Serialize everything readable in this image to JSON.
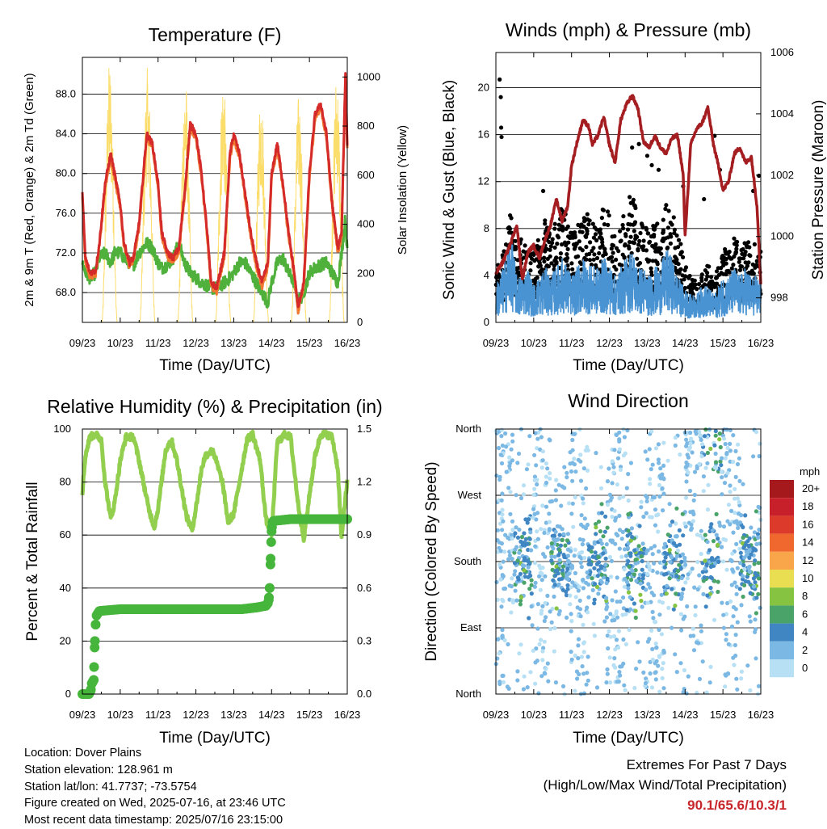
{
  "x_ticks": [
    "09/23",
    "10/23",
    "11/23",
    "12/23",
    "13/23",
    "14/23",
    "15/23",
    "16/23"
  ],
  "x_label": "Time (Day/UTC)",
  "colors": {
    "temp_red": "#d42a2a",
    "temp_orange": "#f07830",
    "dewpoint_green": "#4fb03c",
    "solar_yellow": "#fbdd6c",
    "gust_black": "#000000",
    "wind_blue": "#4a93d2",
    "pressure_maroon": "#a41d20",
    "rh_lightgreen": "#93cf4e",
    "precip_green": "#46b53b",
    "extremes_red": "#c8262b"
  },
  "info": {
    "location": "Location: Dover Plains",
    "elevation": "Station elevation: 128.961 m",
    "latlon": "Station lat/lon: 41.7737; -73.5754",
    "created": "Figure created on Wed, 2025-07-16, at 23:46 UTC",
    "recent": "Most recent data timestamp: 2025/07/16 23:15:00"
  },
  "extremes": {
    "title": "Extremes For Past 7 Days",
    "subtitle": "(High/Low/Max Wind/Total Precipitation)",
    "value": "90.1/65.6/10.3/1"
  },
  "chart_data": [
    {
      "type": "line",
      "title": "Temperature (F)",
      "ylabel": "2m & 9m T (Red, Orange) & 2m Td (Green)",
      "y2label": "Solar Insolation (Yellow)",
      "ylim": [
        65,
        91.7
      ],
      "y2lim": [
        0,
        1080
      ],
      "y_ticks": [
        "68.0",
        "72.0",
        "76.0",
        "80.0",
        "84.0",
        "88.0"
      ],
      "y2_ticks": [
        "0",
        "200",
        "400",
        "600",
        "800",
        "1000"
      ],
      "x_days": [
        0,
        0.08,
        0.2,
        0.35,
        0.45,
        0.6,
        0.75,
        0.85,
        1.0,
        1.1,
        1.25,
        1.35,
        1.5,
        1.7,
        1.85,
        2.0,
        2.1,
        2.25,
        2.4,
        2.55,
        2.7,
        2.85,
        3.0,
        3.15,
        3.3,
        3.4,
        3.55,
        3.75,
        3.9,
        4.0,
        4.15,
        4.3,
        4.45,
        4.6,
        4.75,
        4.9,
        5.0,
        5.15,
        5.3,
        5.45,
        5.6,
        5.7,
        5.85,
        6.0,
        6.15,
        6.3,
        6.45,
        6.6,
        6.75,
        6.85,
        6.95,
        7.0
      ],
      "series": [
        {
          "name": "2m T",
          "values": [
            78,
            71.5,
            70,
            70.2,
            73,
            79,
            82,
            80,
            77,
            73,
            71,
            71.5,
            75,
            84,
            83,
            79,
            74,
            72,
            71.5,
            72.5,
            78,
            85,
            84,
            80,
            74,
            69,
            68.5,
            72,
            82,
            84,
            82,
            78,
            74,
            71,
            69,
            71,
            80,
            83,
            79,
            74,
            70,
            66.5,
            69,
            80,
            86,
            87,
            84,
            77,
            72.5,
            74,
            90,
            83
          ]
        },
        {
          "name": "Td",
          "values": [
            71,
            70,
            69.5,
            70,
            71.5,
            72,
            71,
            72,
            72,
            71.5,
            71,
            70.8,
            72,
            73,
            72.5,
            71,
            70.5,
            70.8,
            71.5,
            73,
            71,
            70,
            69.5,
            69,
            68.7,
            68.5,
            68.4,
            69,
            69.5,
            70,
            71,
            71,
            70,
            69,
            68,
            67,
            69,
            71,
            71.5,
            70,
            69,
            67,
            68,
            70,
            70.5,
            70.8,
            71,
            70,
            69,
            72,
            75.5,
            72
          ]
        },
        {
          "name": "Solar Insolation",
          "daily_peak": [
            1070,
            1040,
            1000,
            1010,
            960,
            930,
            1020,
            1060
          ]
        }
      ]
    },
    {
      "type": "line",
      "title": "Winds (mph) & Pressure (mb)",
      "ylabel": "Sonic Wind & Gust (Blue, Black)",
      "y2label": "Station Pressure (Maroon)",
      "ylim": [
        0,
        23
      ],
      "y2lim": [
        997.2,
        1006
      ],
      "y_ticks": [
        "0",
        "4",
        "8",
        "12",
        "16",
        "20"
      ],
      "y2_ticks": [
        "998",
        "1000",
        "1002",
        "1004",
        "1006"
      ],
      "x_days": [
        0,
        0.2,
        0.4,
        0.55,
        0.7,
        0.85,
        1.0,
        1.15,
        1.3,
        1.45,
        1.6,
        1.75,
        1.9,
        2.0,
        2.15,
        2.3,
        2.45,
        2.55,
        2.7,
        2.85,
        3.0,
        3.15,
        3.3,
        3.45,
        3.6,
        3.75,
        3.9,
        4.05,
        4.2,
        4.35,
        4.5,
        4.65,
        4.8,
        4.95,
        5.0,
        5.15,
        5.3,
        5.45,
        5.6,
        5.75,
        5.9,
        6.0,
        6.15,
        6.3,
        6.45,
        6.6,
        6.75,
        6.9,
        7.0
      ],
      "series": [
        {
          "name": "Pressure",
          "values": [
            998.8,
            999.2,
            999.8,
            1000.4,
            998.6,
            999.5,
            999.7,
            999.3,
            999.9,
            1000.4,
            1001.2,
            1000.5,
            1001,
            1002.3,
            1003.1,
            1003.8,
            1003.6,
            1003,
            1003.3,
            1003.9,
            1003,
            1002.4,
            1003.8,
            1004.3,
            1004.6,
            1004.2,
            1003.1,
            1002.9,
            1003.3,
            1002.9,
            1002.7,
            1003.2,
            1003.3,
            1002,
            1000,
            1003,
            1003.5,
            1003.7,
            1004.2,
            1003,
            1002.2,
            1001.5,
            1001.8,
            1002.7,
            1002.9,
            1002.4,
            1002.6,
            1001,
            998.5
          ]
        },
        {
          "name": "Sonic Wind",
          "values": [
            2,
            3,
            5,
            2.5,
            2.5,
            3,
            2,
            2.5,
            3,
            2.5,
            3,
            3.5,
            3,
            2.5,
            3,
            3.5,
            3.2,
            3,
            3,
            3.5,
            3.2,
            2.5,
            3,
            3.5,
            4,
            3,
            3,
            2.5,
            3,
            3,
            4,
            3.5,
            2.5,
            2,
            1.8,
            1.5,
            1.5,
            2,
            2,
            1.5,
            2,
            2.5,
            2.5,
            3,
            2.5,
            3,
            2.5,
            2.5,
            2.5
          ]
        },
        {
          "name": "Gust",
          "values": [
            4,
            5,
            8,
            5,
            6,
            5,
            5,
            6,
            7,
            6,
            7,
            8,
            7,
            6,
            7,
            8,
            7.5,
            7,
            7,
            8,
            7.5,
            6,
            7,
            8,
            9,
            7,
            7,
            6,
            7,
            6.5,
            8,
            8,
            6,
            5,
            4,
            3,
            3,
            4,
            4,
            3,
            4,
            5,
            5,
            6,
            5,
            6,
            5,
            6,
            5
          ]
        },
        {
          "name": "Gust peaks",
          "x": [
            0.1,
            0.13,
            0.14,
            0.15,
            1.25,
            3.6,
            3.78,
            4.0,
            4.12,
            4.3,
            4.5,
            4.95,
            5.5,
            5.78,
            5.92,
            6.8,
            6.95
          ],
          "values": [
            20.7,
            19.2,
            16.6,
            15.8,
            11.2,
            14.9,
            15.2,
            14.2,
            13.4,
            13,
            10,
            11.6,
            10.5,
            15.9,
            13,
            11.2,
            12.5
          ]
        }
      ]
    },
    {
      "type": "line",
      "title": "Relative Humidity (%) & Precipitation (in)",
      "ylabel": "Percent & Total Rainfall",
      "ylim": [
        0,
        100
      ],
      "y2lim": [
        0,
        1.5
      ],
      "y_ticks": [
        "0",
        "20",
        "40",
        "60",
        "80",
        "100"
      ],
      "y2_ticks": [
        "0.0",
        "0.3",
        "0.6",
        "0.9",
        "1.2",
        "1.5"
      ],
      "x_days": [
        0,
        0.08,
        0.2,
        0.35,
        0.5,
        0.6,
        0.75,
        0.85,
        1.0,
        1.15,
        1.35,
        1.5,
        1.75,
        1.9,
        2.0,
        2.2,
        2.35,
        2.5,
        2.75,
        2.9,
        3.0,
        3.15,
        3.25,
        3.45,
        3.7,
        3.85,
        4.0,
        4.15,
        4.35,
        4.5,
        4.7,
        4.85,
        5.0,
        5.15,
        5.35,
        5.5,
        5.7,
        5.85,
        6.0,
        6.15,
        6.3,
        6.45,
        6.6,
        6.75,
        6.85,
        6.92,
        7.0
      ],
      "series": [
        {
          "name": "RH",
          "values": [
            76,
            90,
            97,
            98,
            96,
            80,
            66,
            72,
            88,
            97,
            97,
            88,
            70,
            63,
            70,
            92,
            96,
            88,
            67,
            62,
            70,
            85,
            90,
            92,
            80,
            65,
            68,
            80,
            96,
            98,
            88,
            66,
            60,
            95,
            98,
            97,
            72,
            58,
            75,
            90,
            98,
            98,
            97,
            85,
            58,
            70,
            80
          ]
        },
        {
          "name": "Total Rainfall",
          "steps": [
            [
              0,
              0
            ],
            [
              0.18,
              0
            ],
            [
              0.22,
              0.02
            ],
            [
              0.25,
              0.06
            ],
            [
              0.3,
              0.08
            ],
            [
              0.33,
              0.3
            ],
            [
              0.36,
              0.44
            ],
            [
              0.45,
              0.47
            ],
            [
              1.0,
              0.48
            ],
            [
              3.5,
              0.48
            ],
            [
              4.2,
              0.48
            ],
            [
              4.6,
              0.49
            ],
            [
              4.85,
              0.5
            ],
            [
              4.92,
              0.52
            ],
            [
              4.95,
              0.6
            ],
            [
              4.98,
              0.8
            ],
            [
              5.0,
              0.92
            ],
            [
              5.02,
              0.97
            ],
            [
              5.05,
              0.98
            ],
            [
              5.5,
              0.99
            ],
            [
              6.0,
              0.99
            ],
            [
              7.0,
              0.99
            ]
          ]
        }
      ]
    },
    {
      "type": "scatter",
      "title": "Wind Direction",
      "ylabel": "Direction (Colored By Speed)",
      "y_ticks": [
        "North",
        "East",
        "South",
        "West",
        "North"
      ],
      "ylim": [
        0,
        360
      ],
      "legend": {
        "title": "mph",
        "labels": [
          "20+",
          "18",
          "16",
          "14",
          "12",
          "10",
          "8",
          "6",
          "4",
          "2",
          "0"
        ],
        "colors": [
          "#a5181c",
          "#c8202a",
          "#dc3b2c",
          "#f0682d",
          "#f9a64a",
          "#e9dd52",
          "#86c340",
          "#4aa46a",
          "#3f86c3",
          "#7cb8e4",
          "#b7e0f5"
        ],
        "placement": "right"
      }
    }
  ]
}
